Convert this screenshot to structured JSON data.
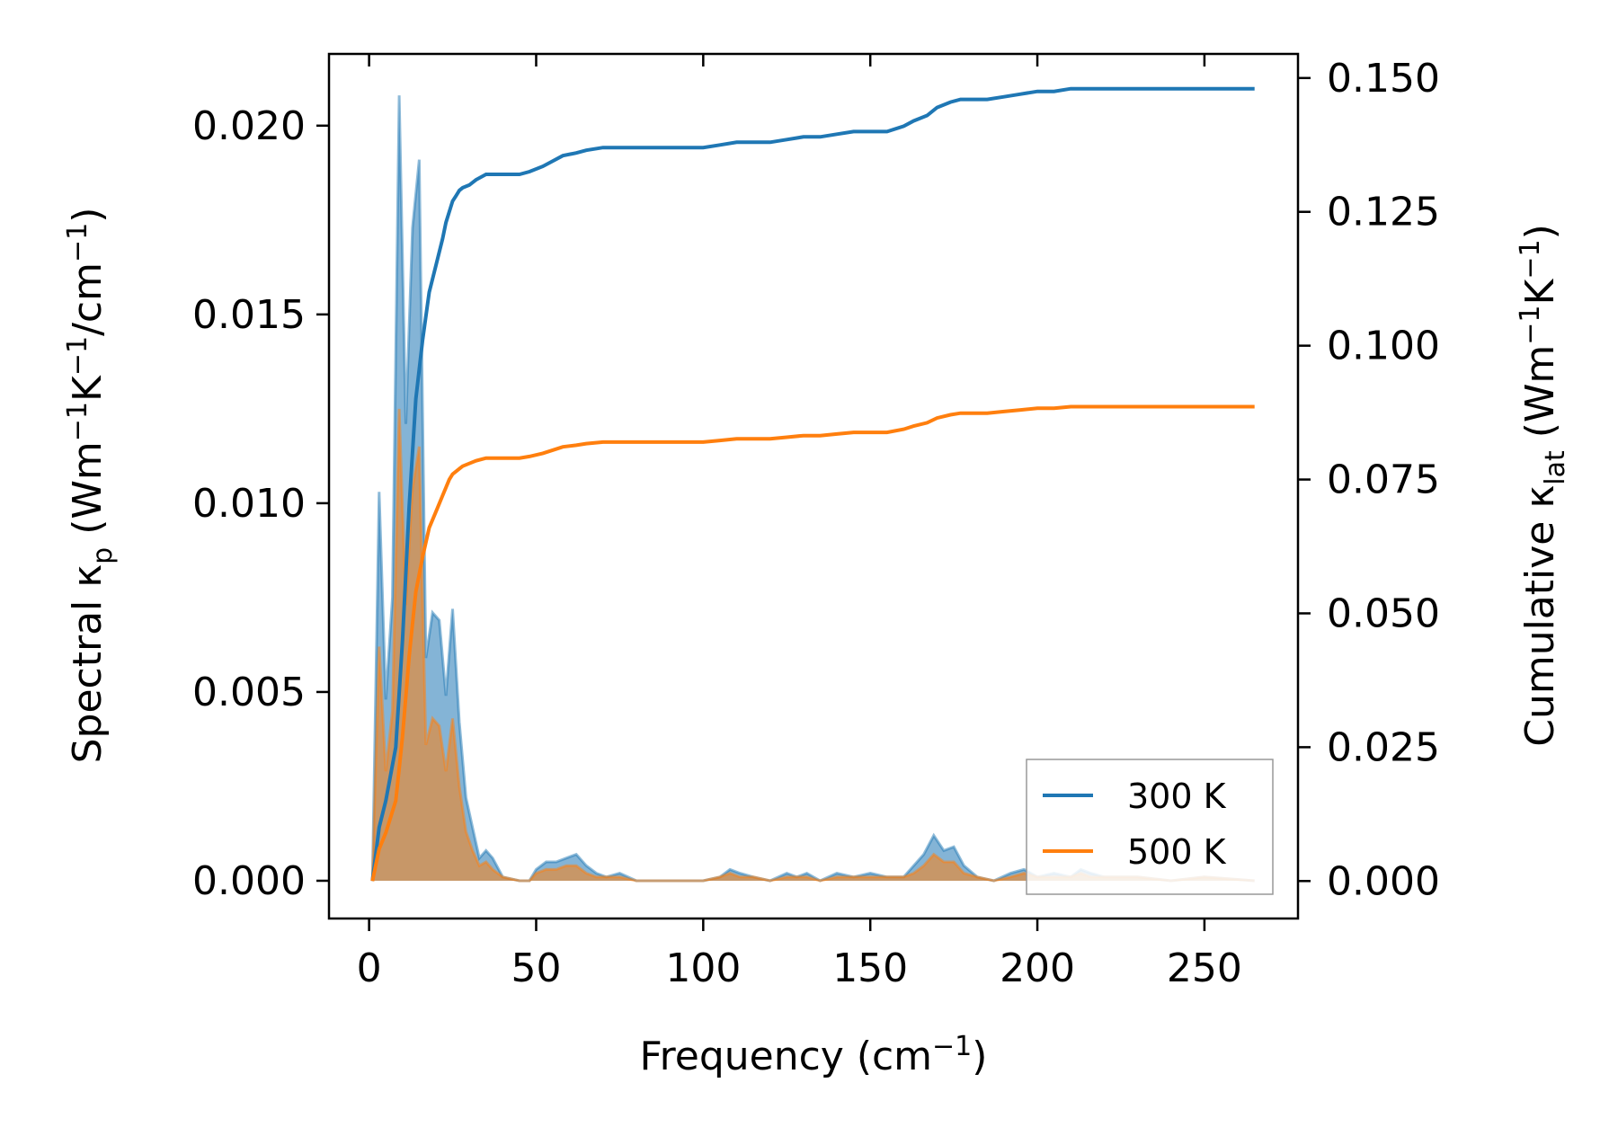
{
  "chart_data": {
    "type": "line",
    "xlabel": "Frequency (cm⁻¹)",
    "ylabel_left": "Spectral κₚ (Wm⁻¹K⁻¹/cm⁻¹)",
    "ylabel_right": "Cumulative κ_lat (Wm⁻¹K⁻¹)",
    "xlim": [
      -12,
      278
    ],
    "ylim_left": [
      -0.001,
      0.0219
    ],
    "ylim_right": [
      -0.007,
      0.1545
    ],
    "xticks": [
      0,
      50,
      100,
      150,
      200,
      250
    ],
    "xtick_labels": [
      "0",
      "50",
      "100",
      "150",
      "200",
      "250"
    ],
    "yticks_left": [
      0.0,
      0.005,
      0.01,
      0.015,
      0.02
    ],
    "ytick_labels_left": [
      "0.000",
      "0.005",
      "0.010",
      "0.015",
      "0.020"
    ],
    "yticks_right": [
      0.0,
      0.025,
      0.05,
      0.075,
      0.1,
      0.125,
      0.15
    ],
    "ytick_labels_right": [
      "0.000",
      "0.025",
      "0.050",
      "0.075",
      "0.100",
      "0.125",
      "0.150"
    ],
    "legend_position": "lower-right",
    "series": [
      {
        "name": "300 K",
        "color": "#1f77b4",
        "spectral": {
          "x": [
            1,
            3,
            5,
            7,
            9,
            11,
            13,
            15,
            17,
            19,
            21,
            23,
            25,
            27,
            29,
            31,
            33,
            35,
            37,
            40,
            45,
            48,
            50,
            53,
            56,
            59,
            62,
            65,
            68,
            71,
            75,
            80,
            90,
            100,
            105,
            108,
            111,
            115,
            120,
            125,
            128,
            131,
            135,
            140,
            145,
            150,
            155,
            160,
            163,
            166,
            169,
            172,
            175,
            178,
            182,
            187,
            192,
            196,
            200,
            205,
            210,
            213,
            216,
            220,
            230,
            240,
            250,
            265
          ],
          "y": [
            0.0,
            0.0103,
            0.0048,
            0.0075,
            0.0208,
            0.0121,
            0.0173,
            0.0191,
            0.0059,
            0.0071,
            0.0069,
            0.0049,
            0.0072,
            0.0042,
            0.0022,
            0.0014,
            0.0006,
            0.0008,
            0.0006,
            0.0001,
            0.0,
            0.0,
            0.0003,
            0.0005,
            0.0005,
            0.0006,
            0.0007,
            0.0004,
            0.0002,
            0.0001,
            0.0002,
            0.0,
            0.0,
            0.0,
            0.0001,
            0.0003,
            0.0002,
            0.0001,
            0.0,
            0.0002,
            0.0001,
            0.0002,
            0.0,
            0.0002,
            0.0001,
            0.0002,
            0.0001,
            0.0001,
            0.0004,
            0.0007,
            0.0012,
            0.0008,
            0.0009,
            0.0004,
            0.0001,
            0.0,
            0.0002,
            0.0003,
            0.0001,
            0.0002,
            0.0001,
            0.0003,
            0.0002,
            0.0001,
            0.0001,
            0.0,
            0.0001,
            0.0
          ]
        },
        "cumulative": {
          "x": [
            1,
            3,
            5,
            8,
            10,
            12,
            14,
            16,
            18,
            20,
            22,
            23,
            24,
            25,
            26,
            27,
            28,
            30,
            32,
            35,
            40,
            45,
            48,
            52,
            55,
            58,
            62,
            65,
            70,
            75,
            80,
            90,
            100,
            105,
            110,
            115,
            120,
            125,
            130,
            135,
            140,
            145,
            150,
            155,
            160,
            163,
            167,
            170,
            174,
            177,
            180,
            185,
            190,
            195,
            200,
            205,
            210,
            215,
            230,
            250,
            265
          ],
          "y": [
            0.0,
            0.01,
            0.015,
            0.025,
            0.045,
            0.07,
            0.09,
            0.101,
            0.11,
            0.115,
            0.12,
            0.123,
            0.125,
            0.127,
            0.128,
            0.129,
            0.1295,
            0.13,
            0.131,
            0.132,
            0.132,
            0.132,
            0.1325,
            0.1335,
            0.1345,
            0.1355,
            0.136,
            0.1365,
            0.137,
            0.137,
            0.137,
            0.137,
            0.137,
            0.1375,
            0.138,
            0.138,
            0.138,
            0.1385,
            0.139,
            0.139,
            0.1395,
            0.14,
            0.14,
            0.14,
            0.141,
            0.142,
            0.143,
            0.1445,
            0.1455,
            0.146,
            0.146,
            0.146,
            0.1465,
            0.147,
            0.1475,
            0.1475,
            0.148,
            0.148,
            0.148,
            0.148,
            0.148
          ]
        }
      },
      {
        "name": "500 K",
        "color": "#ff7f0e",
        "spectral": {
          "x": [
            1,
            3,
            5,
            7,
            9,
            11,
            13,
            15,
            17,
            19,
            21,
            23,
            25,
            27,
            29,
            31,
            33,
            35,
            37,
            40,
            45,
            48,
            50,
            53,
            56,
            59,
            62,
            65,
            68,
            71,
            75,
            80,
            90,
            100,
            105,
            108,
            111,
            115,
            120,
            125,
            128,
            131,
            135,
            140,
            145,
            150,
            155,
            160,
            163,
            166,
            169,
            172,
            175,
            178,
            182,
            187,
            192,
            196,
            200,
            205,
            210,
            213,
            216,
            220,
            230,
            240,
            250,
            265
          ],
          "y": [
            0.0,
            0.0062,
            0.0029,
            0.0045,
            0.0125,
            0.0073,
            0.0104,
            0.0115,
            0.0036,
            0.0043,
            0.0041,
            0.0029,
            0.0043,
            0.0025,
            0.0013,
            0.0008,
            0.0004,
            0.0005,
            0.0003,
            0.0001,
            0.0,
            0.0,
            0.0002,
            0.0003,
            0.0003,
            0.0004,
            0.0004,
            0.0002,
            0.0001,
            0.0001,
            0.0001,
            0.0,
            0.0,
            0.0,
            0.0001,
            0.0002,
            0.0001,
            0.0001,
            0.0,
            0.0001,
            0.0001,
            0.0001,
            0.0,
            0.0001,
            0.0001,
            0.0001,
            0.0001,
            0.0001,
            0.0002,
            0.0004,
            0.0007,
            0.0005,
            0.0005,
            0.0002,
            0.0001,
            0.0,
            0.0001,
            0.0002,
            0.0001,
            0.0001,
            0.0001,
            0.0002,
            0.0001,
            0.0001,
            0.0001,
            0.0,
            0.0001,
            0.0
          ]
        },
        "cumulative": {
          "x": [
            1,
            3,
            5,
            8,
            10,
            12,
            14,
            16,
            18,
            20,
            22,
            23,
            24,
            25,
            26,
            27,
            28,
            30,
            32,
            35,
            40,
            45,
            48,
            52,
            55,
            58,
            62,
            65,
            70,
            75,
            80,
            90,
            100,
            105,
            110,
            115,
            120,
            125,
            130,
            135,
            140,
            145,
            150,
            155,
            160,
            163,
            167,
            170,
            174,
            177,
            180,
            185,
            190,
            195,
            200,
            205,
            210,
            215,
            230,
            250,
            265
          ],
          "y": [
            0.0,
            0.006,
            0.009,
            0.015,
            0.027,
            0.042,
            0.054,
            0.0605,
            0.066,
            0.069,
            0.072,
            0.0735,
            0.075,
            0.076,
            0.0765,
            0.077,
            0.0775,
            0.078,
            0.0785,
            0.079,
            0.079,
            0.079,
            0.0793,
            0.0799,
            0.0805,
            0.0811,
            0.0814,
            0.0817,
            0.082,
            0.082,
            0.082,
            0.082,
            0.082,
            0.0823,
            0.0826,
            0.0826,
            0.0826,
            0.0829,
            0.0832,
            0.0832,
            0.0835,
            0.0838,
            0.0838,
            0.0838,
            0.0844,
            0.085,
            0.0856,
            0.0865,
            0.0871,
            0.0874,
            0.0874,
            0.0874,
            0.0877,
            0.088,
            0.0883,
            0.0883,
            0.0886,
            0.0886,
            0.0886,
            0.0886,
            0.0886
          ]
        }
      }
    ]
  }
}
